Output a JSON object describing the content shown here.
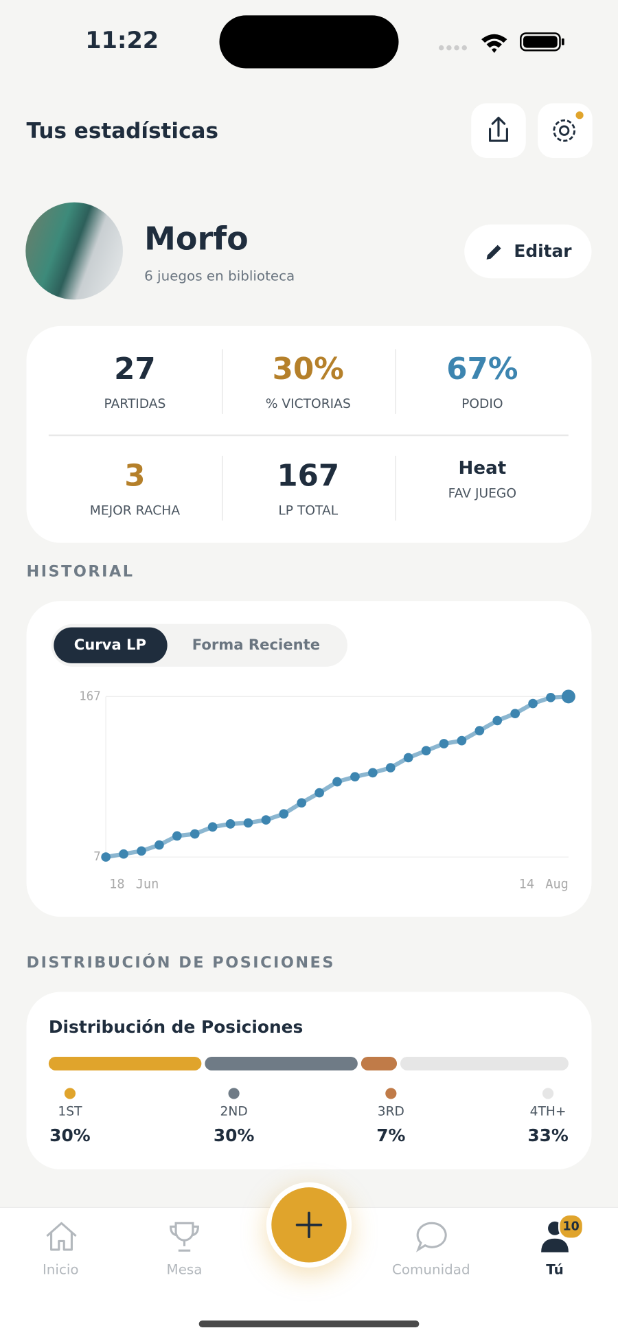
{
  "status_bar": {
    "time": "11:22"
  },
  "header": {
    "title": "Tus estadísticas"
  },
  "profile": {
    "name": "Morfo",
    "subtitle": "6 juegos en biblioteca",
    "edit_button": "Editar"
  },
  "stats": [
    {
      "value": "27",
      "label": "PARTIDAS"
    },
    {
      "value": "30%",
      "label": "% VICTORIAS"
    },
    {
      "value": "67%",
      "label": "PODIO"
    },
    {
      "value": "3",
      "label": "MEJOR RACHA"
    },
    {
      "value": "167",
      "label": "LP TOTAL"
    },
    {
      "value": "Heat",
      "label": "FAV JUEGO"
    }
  ],
  "history": {
    "section_title": "HISTORIAL",
    "tabs": [
      "Curva LP",
      "Forma Reciente"
    ]
  },
  "chart_data": {
    "type": "line",
    "categories": [
      "18 Jun",
      null,
      null,
      null,
      null,
      null,
      null,
      null,
      null,
      null,
      null,
      null,
      null,
      null,
      null,
      null,
      null,
      null,
      null,
      null,
      null,
      null,
      null,
      null,
      null,
      null,
      "14 Aug"
    ],
    "values": [
      7,
      10,
      13,
      19,
      28,
      30,
      37,
      40,
      41,
      44,
      50,
      61,
      71,
      82,
      87,
      91,
      96,
      106,
      113,
      120,
      123,
      133,
      143,
      150,
      160,
      166,
      167
    ],
    "color": "#3d85b0",
    "ylim": [
      7,
      167
    ],
    "yticks": [
      7,
      167
    ],
    "grid": true
  },
  "distribution": {
    "section_title": "DISTRIBUCIÓN DE POSICIONES",
    "title": "Distribución de Posiciones",
    "items": [
      {
        "label": "1ST",
        "value": 30,
        "value_label": "30%",
        "color": "#e0a42c"
      },
      {
        "label": "2ND",
        "value": 30,
        "value_label": "30%",
        "color": "#6f7b86"
      },
      {
        "label": "3RD",
        "value": 7,
        "value_label": "7%",
        "color": "#c07b48"
      },
      {
        "label": "4TH+",
        "value": 33,
        "value_label": "33%",
        "color": "#e6e6e6"
      }
    ]
  },
  "nav": {
    "items": [
      "Inicio",
      "Mesa",
      "Comunidad",
      "Tú"
    ],
    "badge": "10"
  }
}
